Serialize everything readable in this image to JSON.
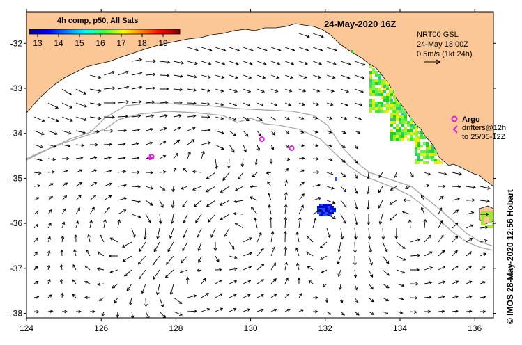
{
  "title": "24-May-2020 16Z",
  "colorbar": {
    "title": "4h comp, p50, All Sats",
    "ticks": [
      "13",
      "14",
      "15",
      "16",
      "17",
      "18",
      "19"
    ],
    "range": [
      12.6,
      19.8
    ]
  },
  "info": {
    "model": "NRT00 GSL",
    "time": "24-May 18:00Z",
    "scale": "0.5m/s (1kt 24h)"
  },
  "argo": {
    "label": "Argo",
    "drifters_line1": "drifters@12h",
    "drifters_line2": "to 25/05-12Z",
    "floats": [
      {
        "lon": 130.3,
        "lat": -34.13
      },
      {
        "lon": 131.1,
        "lat": -34.33
      },
      {
        "lon": 127.35,
        "lat": -34.52
      }
    ],
    "drifter": {
      "lon": 127.3,
      "lat": -34.53
    }
  },
  "credit": "© IMOS 28-May-2020 12:56 Hobart",
  "axes": {
    "lon_range": [
      124,
      136.5
    ],
    "lat_range": [
      -38.1,
      -31.3
    ],
    "x_ticks": [
      "124",
      "126",
      "128",
      "130",
      "132",
      "134",
      "136"
    ],
    "y_ticks": [
      "-32",
      "-33",
      "-34",
      "-35",
      "-36",
      "-37",
      "-38"
    ]
  },
  "colors": {
    "land": "#fbc796",
    "sea": "#ffffff",
    "contour": "#a6a6a6",
    "argo": "#e020e0"
  }
}
